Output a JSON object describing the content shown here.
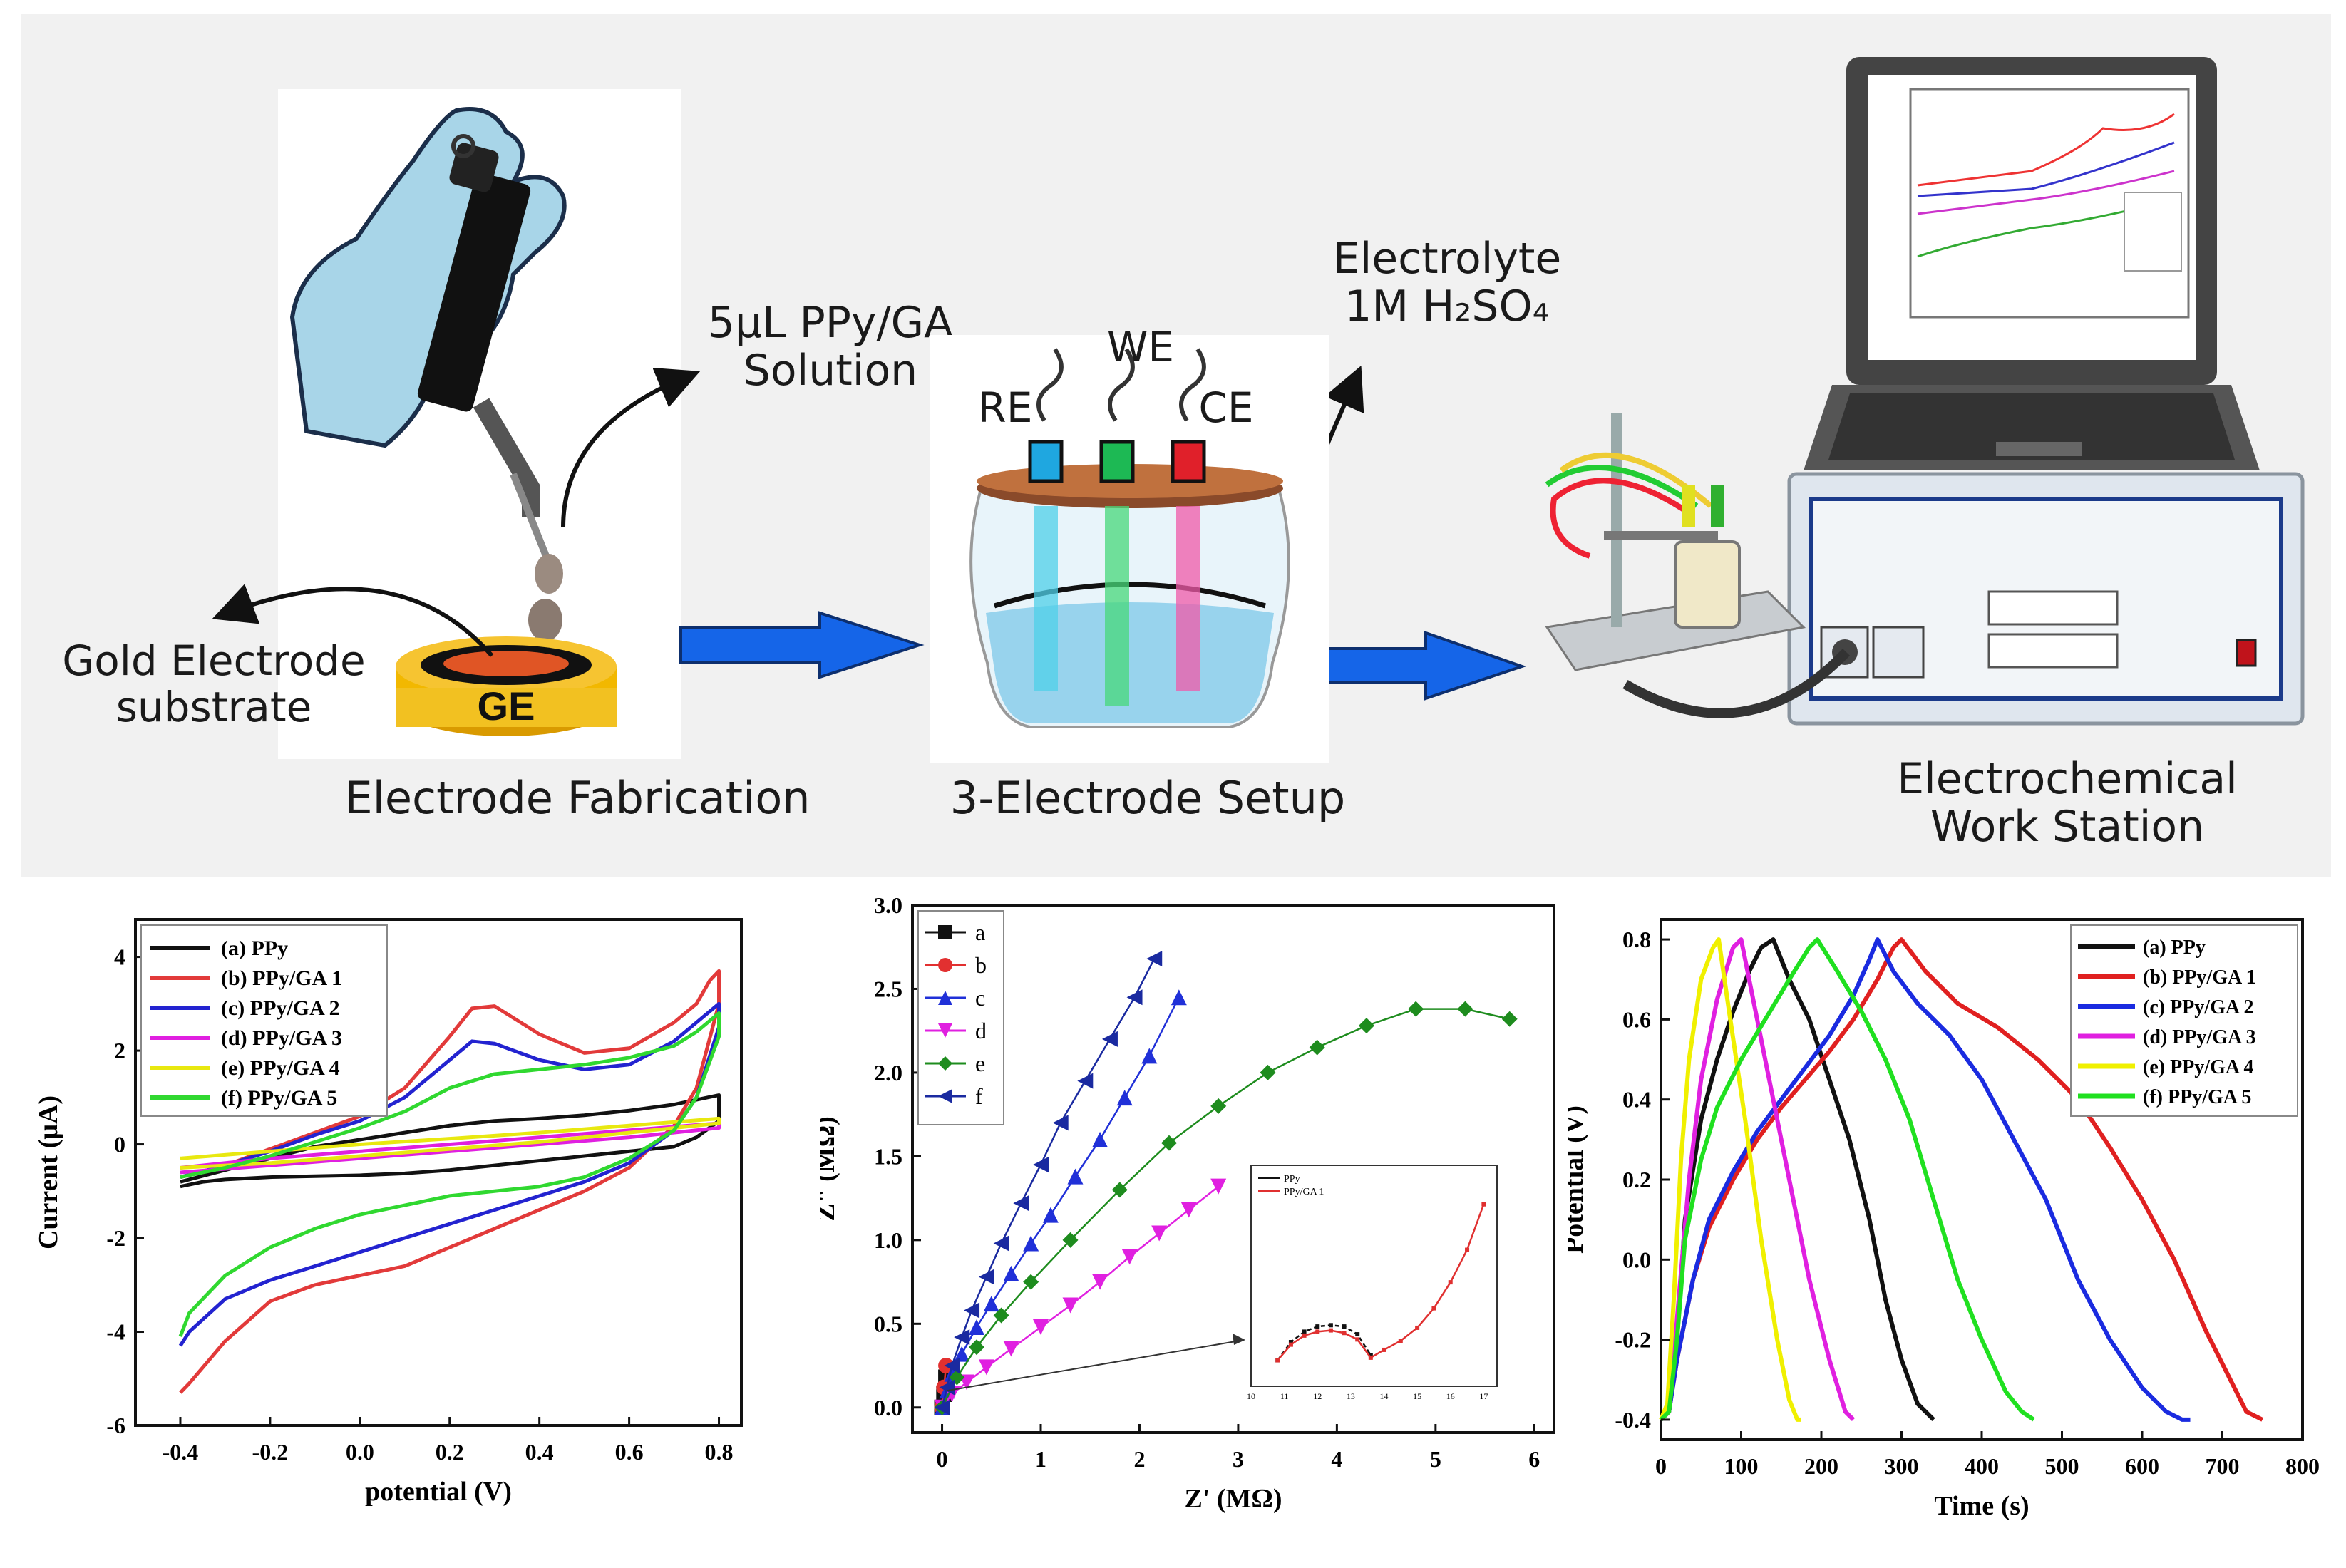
{
  "workflow": {
    "step_labels": [
      "Electrode Fabrication",
      "3-Electrode  Setup",
      "Electrochemical\nWork Station"
    ],
    "solution_label": "5µL PPy/GA\nSolution",
    "substrate_label": "Gold Electrode\nsubstrate",
    "ge_text": "GE",
    "electrolyte_label": "Electrolyte\n1M H₂SO₄",
    "electrodes": {
      "we": "WE",
      "re": "RE",
      "ce": "CE"
    },
    "electrode_colors": {
      "re": "#1fa7e0",
      "we": "#1db954",
      "ce": "#e0202a"
    },
    "arrow_color": "#1565e8"
  },
  "chart_data": [
    {
      "type": "line",
      "name": "cyclic-voltammetry",
      "xlabel": "potential (V)",
      "ylabel": "Current (μA)",
      "xlim": [
        -0.5,
        0.85
      ],
      "ylim": [
        -6,
        4.8
      ],
      "xticks": [
        "-0.4",
        "-0.2",
        "0.0",
        "0.2",
        "0.4",
        "0.6",
        "0.8"
      ],
      "yticks": [
        "-6",
        "-4",
        "-2",
        "0",
        "2",
        "4"
      ],
      "legend_position": "top-left",
      "series": [
        {
          "name": "(a) PPy",
          "color": "#111111",
          "x": [
            -0.4,
            -0.3,
            -0.2,
            -0.1,
            0.0,
            0.1,
            0.2,
            0.3,
            0.4,
            0.5,
            0.6,
            0.7,
            0.75,
            0.8,
            0.8,
            0.75,
            0.7,
            0.6,
            0.5,
            0.4,
            0.3,
            0.2,
            0.1,
            0.0,
            -0.1,
            -0.2,
            -0.3,
            -0.35,
            -0.4
          ],
          "y": [
            -0.8,
            -0.55,
            -0.3,
            -0.05,
            0.1,
            0.25,
            0.4,
            0.5,
            0.55,
            0.62,
            0.72,
            0.85,
            0.95,
            1.05,
            0.5,
            0.15,
            -0.05,
            -0.15,
            -0.25,
            -0.35,
            -0.45,
            -0.55,
            -0.62,
            -0.66,
            -0.68,
            -0.7,
            -0.75,
            -0.8,
            -0.9
          ]
        },
        {
          "name": "(b) PPy/GA 1",
          "color": "#e23a3a",
          "x": [
            -0.4,
            -0.3,
            -0.2,
            -0.1,
            0.0,
            0.1,
            0.2,
            0.25,
            0.3,
            0.4,
            0.5,
            0.6,
            0.7,
            0.75,
            0.78,
            0.8,
            0.8,
            0.75,
            0.7,
            0.6,
            0.5,
            0.4,
            0.3,
            0.2,
            0.1,
            0.0,
            -0.1,
            -0.2,
            -0.3,
            -0.38,
            -0.4
          ],
          "y": [
            -0.7,
            -0.45,
            -0.1,
            0.25,
            0.6,
            1.2,
            2.3,
            2.9,
            2.95,
            2.35,
            1.95,
            2.05,
            2.6,
            3.0,
            3.5,
            3.7,
            3.0,
            1.2,
            0.4,
            -0.5,
            -1.0,
            -1.4,
            -1.8,
            -2.2,
            -2.6,
            -2.8,
            -3.0,
            -3.35,
            -4.2,
            -5.1,
            -5.3
          ]
        },
        {
          "name": "(c) PPy/GA 2",
          "color": "#2323d0",
          "x": [
            -0.4,
            -0.3,
            -0.2,
            -0.1,
            0.0,
            0.1,
            0.2,
            0.25,
            0.3,
            0.4,
            0.5,
            0.6,
            0.7,
            0.75,
            0.8,
            0.8,
            0.75,
            0.7,
            0.6,
            0.5,
            0.4,
            0.3,
            0.2,
            0.1,
            0.0,
            -0.1,
            -0.2,
            -0.3,
            -0.38,
            -0.4
          ],
          "y": [
            -0.7,
            -0.45,
            -0.15,
            0.2,
            0.5,
            1.0,
            1.8,
            2.2,
            2.15,
            1.8,
            1.6,
            1.7,
            2.2,
            2.6,
            3.0,
            2.5,
            1.0,
            0.3,
            -0.4,
            -0.8,
            -1.1,
            -1.4,
            -1.7,
            -2.0,
            -2.3,
            -2.6,
            -2.9,
            -3.3,
            -4.0,
            -4.3
          ]
        },
        {
          "name": "(d) PPy/GA 3",
          "color": "#e020e0",
          "x": [
            -0.4,
            -0.2,
            0.0,
            0.2,
            0.4,
            0.6,
            0.8,
            0.8,
            0.6,
            0.4,
            0.2,
            0.0,
            -0.2,
            -0.4
          ],
          "y": [
            -0.5,
            -0.3,
            -0.15,
            0.0,
            0.15,
            0.3,
            0.45,
            0.35,
            0.15,
            0.0,
            -0.15,
            -0.3,
            -0.45,
            -0.6
          ]
        },
        {
          "name": "(e) PPy/GA 4",
          "color": "#e8e810",
          "x": [
            -0.4,
            -0.2,
            0.0,
            0.2,
            0.4,
            0.6,
            0.8,
            0.8,
            0.6,
            0.4,
            0.2,
            0.0,
            -0.2,
            -0.4
          ],
          "y": [
            -0.3,
            -0.15,
            0.0,
            0.12,
            0.25,
            0.4,
            0.55,
            0.45,
            0.25,
            0.05,
            -0.1,
            -0.25,
            -0.4,
            -0.5
          ]
        },
        {
          "name": "(f) PPy/GA 5",
          "color": "#30d830",
          "x": [
            -0.4,
            -0.3,
            -0.2,
            -0.1,
            0.0,
            0.1,
            0.2,
            0.3,
            0.4,
            0.5,
            0.6,
            0.7,
            0.75,
            0.8,
            0.8,
            0.75,
            0.7,
            0.6,
            0.5,
            0.4,
            0.3,
            0.2,
            0.1,
            0.05,
            0.0,
            -0.1,
            -0.2,
            -0.3,
            -0.38,
            -0.4
          ],
          "y": [
            -0.7,
            -0.5,
            -0.25,
            0.05,
            0.35,
            0.7,
            1.2,
            1.5,
            1.6,
            1.7,
            1.85,
            2.1,
            2.4,
            2.8,
            2.3,
            1.0,
            0.3,
            -0.3,
            -0.7,
            -0.9,
            -1.0,
            -1.1,
            -1.3,
            -1.4,
            -1.5,
            -1.8,
            -2.2,
            -2.8,
            -3.6,
            -4.1
          ]
        }
      ]
    },
    {
      "type": "scatter",
      "name": "nyquist",
      "xlabel": "Z' (MΩ)",
      "ylabel": "Z\" (MΩ)",
      "xlim": [
        -0.3,
        6.2
      ],
      "ylim": [
        -0.15,
        3.0
      ],
      "xticks": [
        "0",
        "1",
        "2",
        "3",
        "4",
        "5",
        "6"
      ],
      "yticks": [
        "0.0",
        "0.5",
        "1.0",
        "1.5",
        "2.0",
        "2.5",
        "3.0"
      ],
      "legend_position": "top-left",
      "series": [
        {
          "name": "a",
          "color": "#111111",
          "marker": "square",
          "x": [
            0.0,
            0.02,
            0.04
          ],
          "y": [
            0.0,
            0.08,
            0.18
          ]
        },
        {
          "name": "b",
          "color": "#e23030",
          "marker": "circle",
          "x": [
            0.0,
            0.02,
            0.04
          ],
          "y": [
            0.0,
            0.12,
            0.25
          ]
        },
        {
          "name": "c",
          "color": "#2030d8",
          "marker": "triangle-up",
          "x": [
            0.0,
            0.05,
            0.1,
            0.2,
            0.35,
            0.5,
            0.7,
            0.9,
            1.1,
            1.35,
            1.6,
            1.85,
            2.1,
            2.4
          ],
          "y": [
            0.0,
            0.1,
            0.2,
            0.32,
            0.48,
            0.62,
            0.8,
            0.98,
            1.15,
            1.38,
            1.6,
            1.85,
            2.1,
            2.45
          ]
        },
        {
          "name": "d",
          "color": "#e020e0",
          "marker": "triangle-down",
          "x": [
            0.0,
            0.1,
            0.25,
            0.45,
            0.7,
            1.0,
            1.3,
            1.6,
            1.9,
            2.2,
            2.5,
            2.8
          ],
          "y": [
            0.0,
            0.08,
            0.15,
            0.24,
            0.35,
            0.48,
            0.61,
            0.75,
            0.9,
            1.04,
            1.18,
            1.32
          ]
        },
        {
          "name": "e",
          "color": "#1e8c1e",
          "marker": "diamond",
          "x": [
            0.0,
            0.15,
            0.35,
            0.6,
            0.9,
            1.3,
            1.8,
            2.3,
            2.8,
            3.3,
            3.8,
            4.3,
            4.8,
            5.3,
            5.75
          ],
          "y": [
            0.0,
            0.18,
            0.36,
            0.55,
            0.75,
            1.0,
            1.3,
            1.58,
            1.8,
            2.0,
            2.15,
            2.28,
            2.38,
            2.38,
            2.32
          ]
        },
        {
          "name": "f",
          "color": "#1a2aa0",
          "marker": "triangle-left",
          "x": [
            0.0,
            0.05,
            0.1,
            0.2,
            0.3,
            0.45,
            0.6,
            0.8,
            1.0,
            1.2,
            1.45,
            1.7,
            1.95,
            2.15
          ],
          "y": [
            0.0,
            0.12,
            0.25,
            0.42,
            0.58,
            0.78,
            0.98,
            1.22,
            1.45,
            1.7,
            1.95,
            2.2,
            2.45,
            2.68
          ]
        }
      ],
      "inset": {
        "legend": [
          "PPy",
          "PPy/GA 1"
        ],
        "xticks": [
          "10",
          "11",
          "12",
          "13",
          "14",
          "15",
          "16",
          "17"
        ],
        "series": [
          {
            "name": "PPy",
            "color": "#111111",
            "x": [
              10.8,
              11.2,
              11.6,
              12.0,
              12.4,
              12.8,
              13.2,
              13.6
            ],
            "y": [
              2.0,
              3.4,
              4.2,
              4.6,
              4.7,
              4.6,
              4.0,
              2.4
            ]
          },
          {
            "name": "PPy/GA 1",
            "color": "#e03030",
            "x": [
              10.8,
              11.2,
              11.6,
              12.0,
              12.4,
              12.8,
              13.2,
              13.6,
              14.0,
              14.5,
              15.0,
              15.5,
              16.0,
              16.5,
              17.0
            ],
            "y": [
              2.0,
              3.2,
              3.9,
              4.2,
              4.3,
              4.1,
              3.6,
              2.2,
              2.8,
              3.5,
              4.5,
              6.0,
              8.0,
              10.5,
              14.0
            ]
          }
        ],
        "xlim": [
          10,
          17.4
        ],
        "ylim": [
          0,
          17
        ]
      }
    },
    {
      "type": "line",
      "name": "galvanostatic-charge-discharge",
      "xlabel": "Time (s)",
      "ylabel": "Potential (V)",
      "xlim": [
        0,
        800
      ],
      "ylim": [
        -0.45,
        0.85
      ],
      "xticks": [
        "0",
        "100",
        "200",
        "300",
        "400",
        "500",
        "600",
        "700",
        "800"
      ],
      "yticks": [
        "-0.4",
        "-0.2",
        "0.0",
        "0.2",
        "0.4",
        "0.6",
        "0.8"
      ],
      "legend_position": "top-right",
      "series": [
        {
          "name": "(a) PPy",
          "color": "#111111",
          "x": [
            0,
            10,
            20,
            30,
            50,
            70,
            90,
            110,
            125,
            140,
            160,
            185,
            210,
            235,
            260,
            280,
            300,
            320,
            340
          ],
          "y": [
            -0.4,
            -0.38,
            -0.2,
            0.1,
            0.35,
            0.5,
            0.62,
            0.72,
            0.78,
            0.8,
            0.7,
            0.6,
            0.45,
            0.3,
            0.1,
            -0.1,
            -0.25,
            -0.36,
            -0.4
          ]
        },
        {
          "name": "(b) PPy/GA 1",
          "color": "#e02020",
          "x": [
            0,
            10,
            20,
            40,
            60,
            90,
            120,
            150,
            180,
            210,
            240,
            270,
            290,
            300,
            330,
            370,
            420,
            470,
            520,
            560,
            600,
            640,
            680,
            710,
            730,
            750
          ],
          "y": [
            -0.4,
            -0.38,
            -0.25,
            -0.05,
            0.08,
            0.2,
            0.3,
            0.38,
            0.45,
            0.52,
            0.6,
            0.7,
            0.78,
            0.8,
            0.72,
            0.64,
            0.58,
            0.5,
            0.4,
            0.28,
            0.15,
            0.0,
            -0.18,
            -0.3,
            -0.38,
            -0.4
          ]
        },
        {
          "name": "(c) PPy/GA 2",
          "color": "#1a2be0",
          "x": [
            0,
            10,
            20,
            40,
            60,
            90,
            120,
            150,
            180,
            210,
            240,
            260,
            270,
            290,
            320,
            360,
            400,
            440,
            480,
            520,
            560,
            600,
            630,
            650,
            660
          ],
          "y": [
            -0.4,
            -0.38,
            -0.25,
            -0.05,
            0.1,
            0.22,
            0.32,
            0.4,
            0.48,
            0.56,
            0.66,
            0.75,
            0.8,
            0.72,
            0.64,
            0.56,
            0.45,
            0.3,
            0.15,
            -0.05,
            -0.2,
            -0.32,
            -0.38,
            -0.4,
            -0.4
          ]
        },
        {
          "name": "(d) PPy/GA 3",
          "color": "#e020e0",
          "x": [
            0,
            10,
            20,
            35,
            50,
            70,
            90,
            100,
            115,
            135,
            160,
            185,
            210,
            230,
            240
          ],
          "y": [
            -0.4,
            -0.38,
            -0.15,
            0.2,
            0.45,
            0.65,
            0.78,
            0.8,
            0.65,
            0.45,
            0.2,
            -0.05,
            -0.25,
            -0.38,
            -0.4
          ]
        },
        {
          "name": "(e) PPy/GA 4",
          "color": "#f0f000",
          "x": [
            0,
            8,
            16,
            25,
            35,
            50,
            65,
            72,
            85,
            105,
            125,
            145,
            160,
            170,
            175
          ],
          "y": [
            -0.4,
            -0.36,
            -0.1,
            0.25,
            0.5,
            0.7,
            0.78,
            0.8,
            0.62,
            0.35,
            0.05,
            -0.2,
            -0.35,
            -0.4,
            -0.4
          ]
        },
        {
          "name": "(f) PPy/GA 5",
          "color": "#20e020",
          "x": [
            0,
            10,
            20,
            30,
            50,
            70,
            100,
            130,
            160,
            185,
            195,
            220,
            250,
            280,
            310,
            340,
            370,
            400,
            430,
            450,
            465
          ],
          "y": [
            -0.4,
            -0.38,
            -0.2,
            0.05,
            0.25,
            0.38,
            0.5,
            0.6,
            0.7,
            0.78,
            0.8,
            0.72,
            0.62,
            0.5,
            0.35,
            0.15,
            -0.05,
            -0.2,
            -0.33,
            -0.38,
            -0.4
          ]
        }
      ]
    }
  ]
}
